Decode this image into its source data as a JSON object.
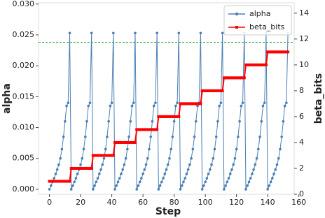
{
  "chart_data": {
    "type": "line",
    "xlabel": "Step",
    "ylabel": "alpha",
    "y2label": "beta_bits",
    "x": [
      0,
      1,
      2,
      3,
      4,
      5,
      6,
      7,
      8,
      9,
      10,
      11,
      12,
      13,
      14,
      15,
      16,
      17,
      18,
      19,
      20,
      21,
      22,
      23,
      24,
      25,
      26,
      27,
      28,
      29,
      30,
      31,
      32,
      33,
      34,
      35,
      36,
      37,
      38,
      39,
      40,
      41,
      42,
      43,
      44,
      45,
      46,
      47,
      48,
      49,
      50,
      51,
      52,
      53,
      54,
      55,
      56,
      57,
      58,
      59,
      60,
      61,
      62,
      63,
      64,
      65,
      66,
      67,
      68,
      69,
      70,
      71,
      72,
      73,
      74,
      75,
      76,
      77,
      78,
      79,
      80,
      81,
      82,
      83,
      84,
      85,
      86,
      87,
      88,
      89,
      90,
      91,
      92,
      93,
      94,
      95,
      96,
      97,
      98,
      99,
      100,
      101,
      102,
      103,
      104,
      105,
      106,
      107,
      108,
      109,
      110,
      111,
      112,
      113,
      114,
      115,
      116,
      117,
      118,
      119,
      120,
      121,
      122,
      123,
      124,
      125,
      126,
      127,
      128,
      129,
      130,
      131,
      132,
      133,
      134,
      135,
      136,
      137,
      138,
      139,
      140,
      141,
      142,
      143,
      144,
      145,
      146,
      147,
      148,
      149,
      150,
      151,
      152,
      153
    ],
    "series": [
      {
        "name": "alpha",
        "color": "#4a7fb5",
        "axis": "y",
        "values": [
          0,
          0.0006,
          0.0012,
          0.0018,
          0.0025,
          0.0032,
          0.004,
          0.005,
          0.0065,
          0.0085,
          0.011,
          0.0135,
          0.014,
          0.0253,
          0,
          0.0006,
          0.0012,
          0.0018,
          0.0025,
          0.0032,
          0.004,
          0.005,
          0.0065,
          0.0085,
          0.011,
          0.0135,
          0.014,
          0.0253,
          0,
          0.0006,
          0.0012,
          0.0018,
          0.0025,
          0.0032,
          0.004,
          0.005,
          0.0065,
          0.0085,
          0.011,
          0.0135,
          0.014,
          0.0253,
          0,
          0.0006,
          0.0012,
          0.0018,
          0.0025,
          0.0032,
          0.004,
          0.005,
          0.0065,
          0.0085,
          0.011,
          0.0135,
          0.014,
          0.0253,
          0,
          0.0006,
          0.0012,
          0.0018,
          0.0025,
          0.0032,
          0.004,
          0.005,
          0.0065,
          0.0085,
          0.011,
          0.0135,
          0.014,
          0.0253,
          0,
          0.0006,
          0.0012,
          0.0018,
          0.0025,
          0.0032,
          0.004,
          0.005,
          0.0065,
          0.0085,
          0.011,
          0.0135,
          0.014,
          0.0253,
          0,
          0.0006,
          0.0012,
          0.0018,
          0.0025,
          0.0032,
          0.004,
          0.005,
          0.0065,
          0.0085,
          0.011,
          0.0135,
          0.014,
          0.0253,
          0,
          0.0006,
          0.0012,
          0.0018,
          0.0025,
          0.0032,
          0.004,
          0.005,
          0.0065,
          0.0085,
          0.011,
          0.0135,
          0.014,
          0.0253,
          0,
          0.0006,
          0.0012,
          0.0018,
          0.0025,
          0.0032,
          0.004,
          0.005,
          0.0065,
          0.0085,
          0.011,
          0.0135,
          0.014,
          0.0253,
          0,
          0.0006,
          0.0012,
          0.0018,
          0.0025,
          0.0032,
          0.004,
          0.005,
          0.0065,
          0.0085,
          0.011,
          0.0135,
          0.014,
          0.0253,
          0,
          0.0006,
          0.0012,
          0.0018,
          0.0025,
          0.0032,
          0.004,
          0.005,
          0.0065,
          0.0085,
          0.011,
          0.0135,
          0.014,
          0.0253
        ]
      },
      {
        "name": "beta_bits",
        "color": "#ff0000",
        "axis": "y2",
        "values": [
          1,
          1,
          1,
          1,
          1,
          1,
          1,
          1,
          1,
          1,
          1,
          1,
          1,
          1,
          2,
          2,
          2,
          2,
          2,
          2,
          2,
          2,
          2,
          2,
          2,
          2,
          2,
          2,
          3,
          3,
          3,
          3,
          3,
          3,
          3,
          3,
          3,
          3,
          3,
          3,
          3,
          3,
          4,
          4,
          4,
          4,
          4,
          4,
          4,
          4,
          4,
          4,
          4,
          4,
          4,
          4,
          5,
          5,
          5,
          5,
          5,
          5,
          5,
          5,
          5,
          5,
          5,
          5,
          5,
          5,
          6,
          6,
          6,
          6,
          6,
          6,
          6,
          6,
          6,
          6,
          6,
          6,
          6,
          6,
          7,
          7,
          7,
          7,
          7,
          7,
          7,
          7,
          7,
          7,
          7,
          7,
          7,
          7,
          8,
          8,
          8,
          8,
          8,
          8,
          8,
          8,
          8,
          8,
          8,
          8,
          8,
          8,
          9,
          9,
          9,
          9,
          9,
          9,
          9,
          9,
          9,
          9,
          9,
          9,
          9,
          9,
          10,
          10,
          10,
          10,
          10,
          10,
          10,
          10,
          10,
          10,
          10,
          10,
          10,
          10,
          11,
          11,
          11,
          11,
          11,
          11,
          11,
          11,
          11,
          11,
          11,
          11,
          11,
          11
        ]
      }
    ],
    "hline": {
      "value": 0.0238,
      "color": "#2ca02c",
      "axis": "y"
    },
    "xlim": [
      -7,
      157
    ],
    "xticks": [
      0,
      20,
      40,
      60,
      80,
      100,
      120,
      140,
      160
    ],
    "ylim": [
      -0.0008,
      0.0302
    ],
    "yticks": [
      {
        "value": 0,
        "label": "0.000"
      },
      {
        "value": 0.005,
        "label": "0.005"
      },
      {
        "value": 0.01,
        "label": "0.010"
      },
      {
        "value": 0.015,
        "label": "0.015"
      },
      {
        "value": 0.02,
        "label": "0.020"
      },
      {
        "value": 0.025,
        "label": "0.025"
      },
      {
        "value": 0.03,
        "label": "0.030"
      }
    ],
    "y2lim": [
      0,
      14.8
    ],
    "y2ticks": [
      0,
      2,
      4,
      6,
      8,
      10,
      12,
      14
    ],
    "legend": "upper right"
  }
}
